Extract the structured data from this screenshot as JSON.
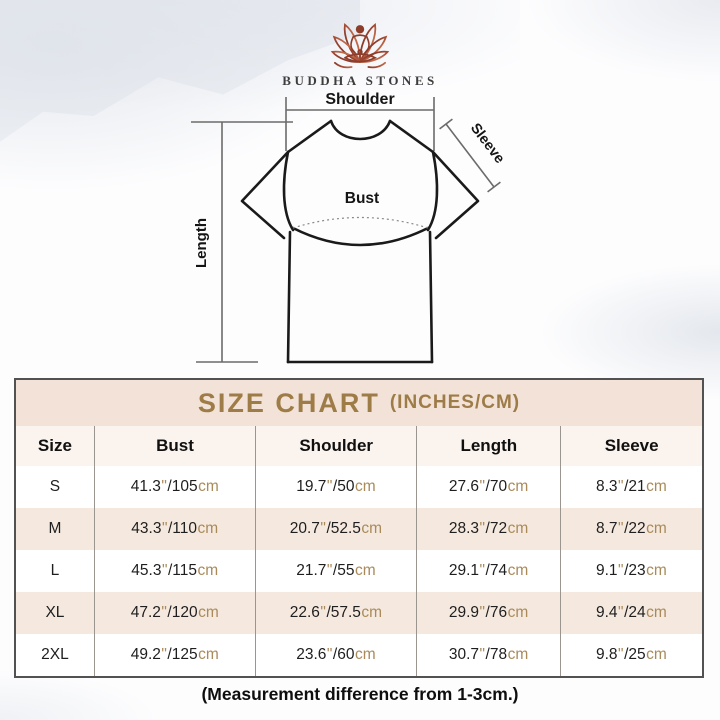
{
  "brand": {
    "name": "BUDDHA STONES"
  },
  "diagram": {
    "labels": {
      "shoulder": "Shoulder",
      "sleeve": "Sleeve",
      "bust": "Bust",
      "length": "Length"
    }
  },
  "size_chart": {
    "title": "SIZE CHART",
    "title_suffix": "(INCHES/CM)",
    "columns": [
      "Size",
      "Bust",
      "Shoulder",
      "Length",
      "Sleeve"
    ],
    "unit_inch_mark": "\"",
    "unit_cm": "cm",
    "rows": [
      {
        "size": "S",
        "bust": {
          "inch": "41.3",
          "cm": "105"
        },
        "shoulder": {
          "inch": "19.7",
          "cm": "50"
        },
        "length": {
          "inch": "27.6",
          "cm": "70"
        },
        "sleeve": {
          "inch": "8.3",
          "cm": "21"
        }
      },
      {
        "size": "M",
        "bust": {
          "inch": "43.3",
          "cm": "110"
        },
        "shoulder": {
          "inch": "20.7",
          "cm": "52.5"
        },
        "length": {
          "inch": "28.3",
          "cm": "72"
        },
        "sleeve": {
          "inch": "8.7",
          "cm": "22"
        }
      },
      {
        "size": "L",
        "bust": {
          "inch": "45.3",
          "cm": "115"
        },
        "shoulder": {
          "inch": "21.7",
          "cm": "55"
        },
        "length": {
          "inch": "29.1",
          "cm": "74"
        },
        "sleeve": {
          "inch": "9.1",
          "cm": "23"
        }
      },
      {
        "size": "XL",
        "bust": {
          "inch": "47.2",
          "cm": "120"
        },
        "shoulder": {
          "inch": "22.6",
          "cm": "57.5"
        },
        "length": {
          "inch": "29.9",
          "cm": "76"
        },
        "sleeve": {
          "inch": "9.4",
          "cm": "24"
        }
      },
      {
        "size": "2XL",
        "bust": {
          "inch": "49.2",
          "cm": "125"
        },
        "shoulder": {
          "inch": "23.6",
          "cm": "60"
        },
        "length": {
          "inch": "30.7",
          "cm": "78"
        },
        "sleeve": {
          "inch": "9.8",
          "cm": "25"
        }
      }
    ]
  },
  "footnote": "(Measurement difference from 1-3cm.)",
  "colors": {
    "accent_gold": "#9e7c48",
    "unit_tan": "#a98a5a",
    "title_bar_bg": "#f2e2d7",
    "header_row_bg": "#faf3ee",
    "row_stripe_bg": "#f5e9df",
    "logo_rust_dark": "#8e3c2a",
    "logo_rust_light": "#c06a4a"
  }
}
